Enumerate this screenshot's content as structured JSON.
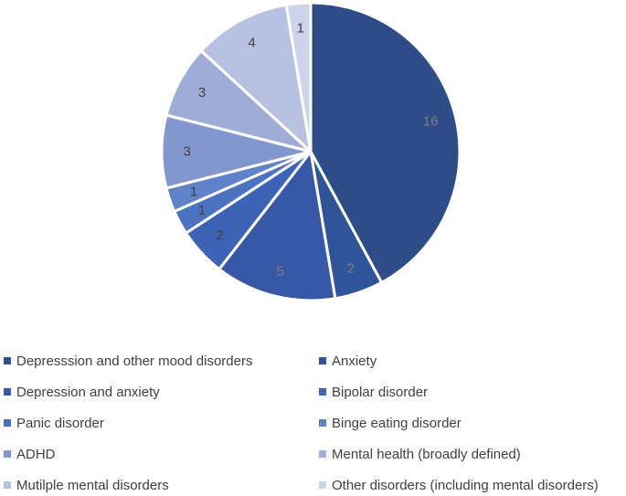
{
  "chart_data": {
    "type": "pie",
    "categories": [
      "Depresssion and other mood disorders",
      "Anxiety",
      "Depression and anxiety",
      "Bipolar disorder",
      "Panic disorder",
      "Binge eating disorder",
      "ADHD",
      "Mental health (broadly defined)",
      "Mutilple mental disorders",
      "Other disorders (including mental disorders)"
    ],
    "values": [
      16,
      2,
      5,
      2,
      1,
      1,
      3,
      3,
      4,
      1
    ],
    "data_labels": [
      "16",
      "2",
      "5",
      "2",
      "1",
      "1",
      "3",
      "3",
      "4",
      "1"
    ],
    "colors": [
      "#2e4c87",
      "#30549a",
      "#3658a7",
      "#3c63b6",
      "#4a72c1",
      "#5f82c8",
      "#8397cf",
      "#a0acd8",
      "#b8c1e2",
      "#ccd3ea"
    ],
    "label_colors": [
      "#7f7f7f",
      "#7f7f7f",
      "#7f7f7f",
      "#404040",
      "#404040",
      "#404040",
      "#404040",
      "#404040",
      "#404040",
      "#404040"
    ],
    "legend_position": "bottom"
  }
}
